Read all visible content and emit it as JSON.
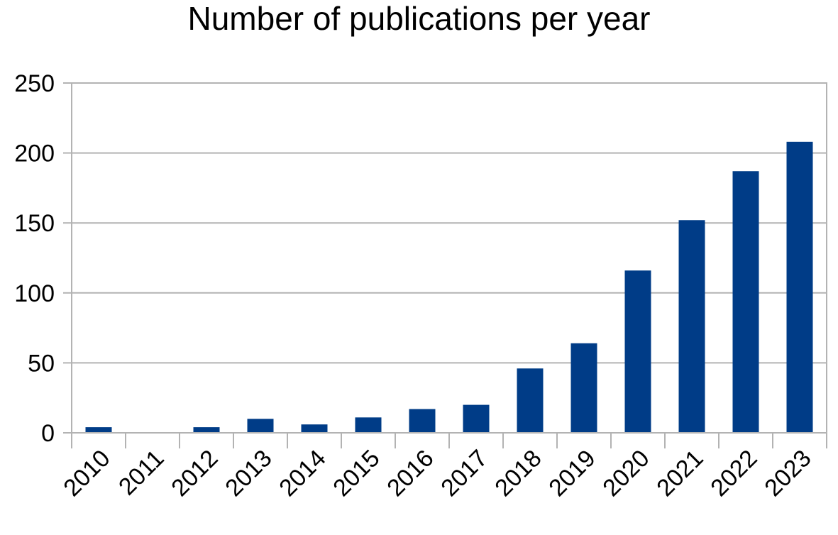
{
  "chart_data": {
    "type": "bar",
    "title": "Number of publications per year",
    "categories": [
      "2010",
      "2011",
      "2012",
      "2013",
      "2014",
      "2015",
      "2016",
      "2017",
      "2018",
      "2019",
      "2020",
      "2021",
      "2022",
      "2023"
    ],
    "values": [
      4,
      0,
      4,
      10,
      6,
      11,
      17,
      20,
      46,
      64,
      116,
      152,
      187,
      208
    ],
    "xlabel": "",
    "ylabel": "",
    "ylim": [
      0,
      250
    ],
    "yticks": [
      0,
      50,
      100,
      150,
      200,
      250
    ],
    "grid": true,
    "bar_color": "#003c87",
    "grid_color": "#b3b3b3",
    "legend": "none"
  }
}
